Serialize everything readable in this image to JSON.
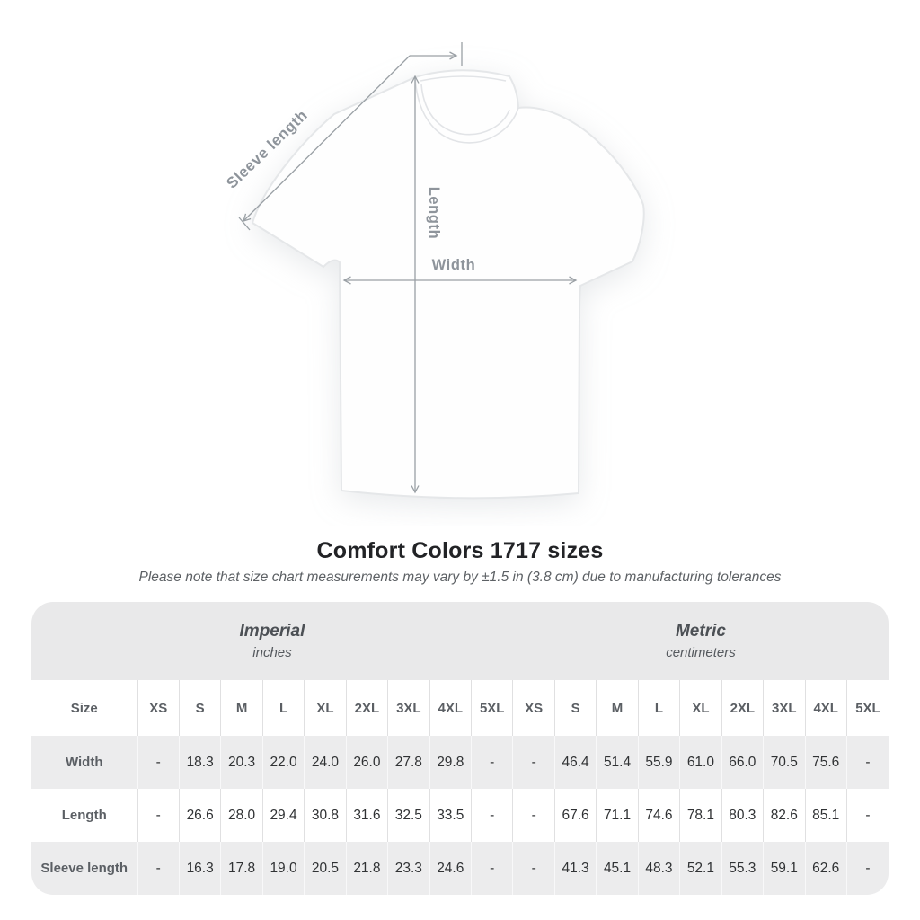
{
  "diagram": {
    "labels": {
      "sleeve_length": "Sleeve length",
      "length": "Length",
      "width": "Width"
    },
    "colors": {
      "annotation": "#9aa0a5",
      "label_text": "#8e949b"
    }
  },
  "title": "Comfort Colors 1717 sizes",
  "subtitle": "Please note that size chart measurements may vary by ±1.5 in (3.8 cm) due to manufacturing tolerances",
  "table": {
    "unit_groups": [
      {
        "name": "Imperial",
        "unit": "inches"
      },
      {
        "name": "Metric",
        "unit": "centimeters"
      }
    ],
    "size_header_label": "Size",
    "size_labels": [
      "XS",
      "S",
      "M",
      "L",
      "XL",
      "2XL",
      "3XL",
      "4XL",
      "5XL"
    ],
    "rows": [
      {
        "label": "Width",
        "imperial": [
          "-",
          "18.3",
          "20.3",
          "22.0",
          "24.0",
          "26.0",
          "27.8",
          "29.8",
          "-"
        ],
        "metric": [
          "-",
          "46.4",
          "51.4",
          "55.9",
          "61.0",
          "66.0",
          "70.5",
          "75.6",
          "-"
        ]
      },
      {
        "label": "Length",
        "imperial": [
          "-",
          "26.6",
          "28.0",
          "29.4",
          "30.8",
          "31.6",
          "32.5",
          "33.5",
          "-"
        ],
        "metric": [
          "-",
          "67.6",
          "71.1",
          "74.6",
          "78.1",
          "80.3",
          "82.6",
          "85.1",
          "-"
        ]
      },
      {
        "label": "Sleeve length",
        "imperial": [
          "-",
          "16.3",
          "17.8",
          "19.0",
          "20.5",
          "21.8",
          "23.3",
          "24.6",
          "-"
        ],
        "metric": [
          "-",
          "41.3",
          "45.1",
          "48.3",
          "52.1",
          "55.3",
          "59.1",
          "62.6",
          "-"
        ]
      }
    ]
  }
}
